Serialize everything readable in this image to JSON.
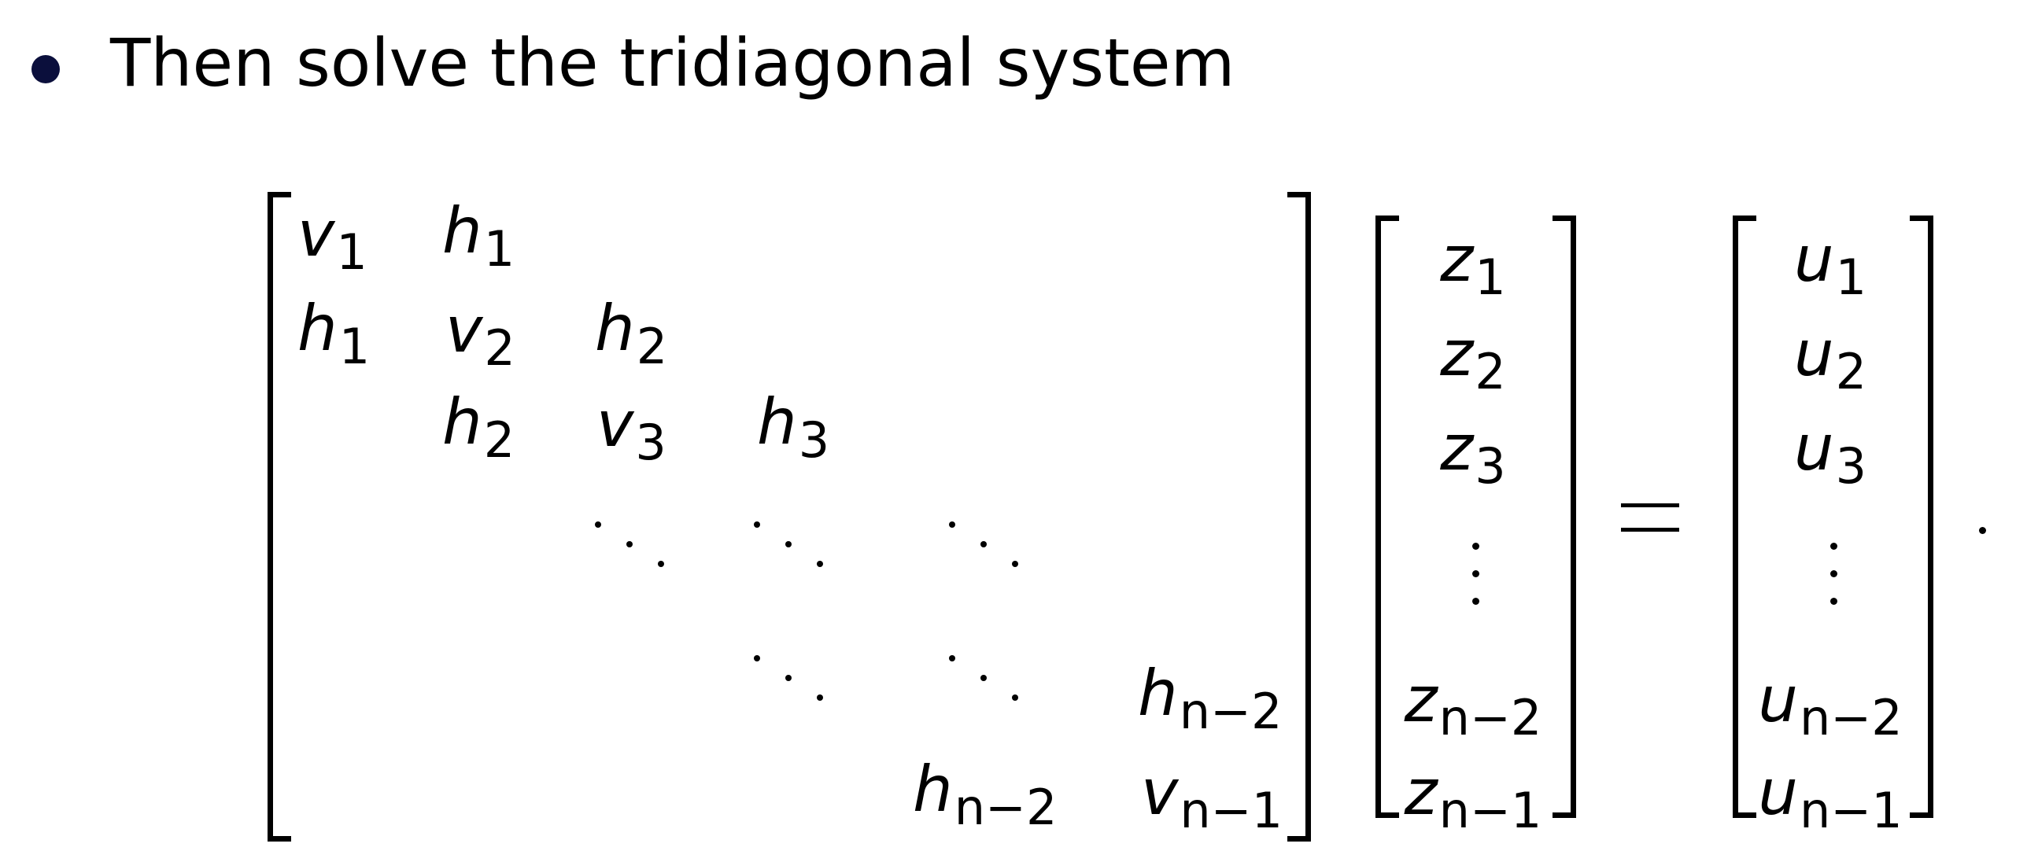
{
  "bullet": {
    "text": "Then solve the tridiagonal system"
  },
  "matrix": {
    "rows": [
      [
        {
          "base": "v",
          "sub": "1"
        },
        {
          "base": "h",
          "sub": "1"
        }
      ],
      [
        {
          "base": "h",
          "sub": "1"
        },
        {
          "base": "v",
          "sub": "2"
        },
        {
          "base": "h",
          "sub": "2"
        }
      ],
      [
        {
          "base": "h",
          "sub": "2"
        },
        {
          "base": "v",
          "sub": "3"
        },
        {
          "base": "h",
          "sub": "3"
        }
      ],
      [
        "⋱",
        "⋱",
        "⋱"
      ],
      [
        "⋱",
        "⋱",
        {
          "base": "h",
          "sub": "n−2"
        }
      ],
      [
        {
          "base": "h",
          "sub": "n−2"
        },
        {
          "base": "v",
          "sub": "n−1"
        }
      ]
    ]
  },
  "vector_z": {
    "entries": [
      {
        "base": "z",
        "sub": "1"
      },
      {
        "base": "z",
        "sub": "2"
      },
      {
        "base": "z",
        "sub": "3"
      },
      "⋮",
      {
        "base": "z",
        "sub": "n−2"
      },
      {
        "base": "z",
        "sub": "n−1"
      }
    ]
  },
  "equals_sign": "=",
  "vector_u": {
    "entries": [
      {
        "base": "u",
        "sub": "1"
      },
      {
        "base": "u",
        "sub": "2"
      },
      {
        "base": "u",
        "sub": "3"
      },
      "⋮",
      {
        "base": "u",
        "sub": "n−2"
      },
      {
        "base": "u",
        "sub": "n−1"
      }
    ]
  },
  "terminal_period": "."
}
